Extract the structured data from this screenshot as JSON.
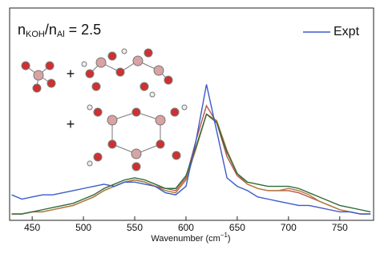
{
  "chart_data": {
    "type": "line",
    "annotation": [
      "n",
      "KOH",
      "/n",
      "Al",
      " = 2.5"
    ],
    "x_label": [
      "Wavenumber (cm",
      "−1",
      ")"
    ],
    "x": [
      430,
      440,
      450,
      460,
      470,
      480,
      490,
      500,
      510,
      520,
      530,
      540,
      550,
      560,
      570,
      580,
      590,
      600,
      610,
      620,
      630,
      640,
      650,
      660,
      670,
      680,
      690,
      700,
      710,
      720,
      730,
      740,
      750,
      760,
      770,
      780
    ],
    "series": [
      {
        "color": "#c0504d",
        "values": [
          0.03,
          0.03,
          0.04,
          0.04,
          0.05,
          0.06,
          0.07,
          0.09,
          0.11,
          0.14,
          0.16,
          0.18,
          0.19,
          0.18,
          0.16,
          0.15,
          0.14,
          0.2,
          0.38,
          0.54,
          0.46,
          0.3,
          0.21,
          0.17,
          0.15,
          0.14,
          0.14,
          0.14,
          0.13,
          0.11,
          0.09,
          0.07,
          0.05,
          0.04,
          0.03,
          0.03
        ]
      },
      {
        "color": "#b07a3a",
        "values": [
          0.03,
          0.03,
          0.04,
          0.04,
          0.05,
          0.06,
          0.07,
          0.09,
          0.11,
          0.14,
          0.16,
          0.18,
          0.19,
          0.18,
          0.16,
          0.14,
          0.13,
          0.19,
          0.34,
          0.5,
          0.47,
          0.33,
          0.22,
          0.17,
          0.15,
          0.14,
          0.14,
          0.15,
          0.14,
          0.12,
          0.09,
          0.07,
          0.05,
          0.04,
          0.03,
          0.03
        ]
      },
      {
        "color": "#2e6b3a",
        "values": [
          0.03,
          0.03,
          0.04,
          0.05,
          0.06,
          0.07,
          0.08,
          0.1,
          0.12,
          0.15,
          0.17,
          0.19,
          0.2,
          0.19,
          0.17,
          0.15,
          0.15,
          0.21,
          0.35,
          0.5,
          0.46,
          0.32,
          0.22,
          0.18,
          0.17,
          0.16,
          0.16,
          0.16,
          0.15,
          0.13,
          0.11,
          0.09,
          0.07,
          0.06,
          0.05,
          0.04
        ]
      },
      {
        "name": "Expt",
        "color": "#3b5bc9",
        "values": [
          0.12,
          0.1,
          0.11,
          0.12,
          0.12,
          0.13,
          0.14,
          0.15,
          0.16,
          0.17,
          0.16,
          0.18,
          0.18,
          0.17,
          0.16,
          0.13,
          0.12,
          0.16,
          0.38,
          0.64,
          0.42,
          0.2,
          0.16,
          0.14,
          0.11,
          0.1,
          0.09,
          0.08,
          0.07,
          0.07,
          0.06,
          0.05,
          0.04,
          0.04,
          0.03,
          0.03
        ]
      }
    ],
    "xlim": [
      428,
      783
    ],
    "ylim": [
      0,
      1
    ],
    "xticks": [
      450,
      500,
      550,
      600,
      650,
      700,
      750
    ],
    "legend": "upper right",
    "plus_signs": [
      "+",
      "+"
    ]
  }
}
